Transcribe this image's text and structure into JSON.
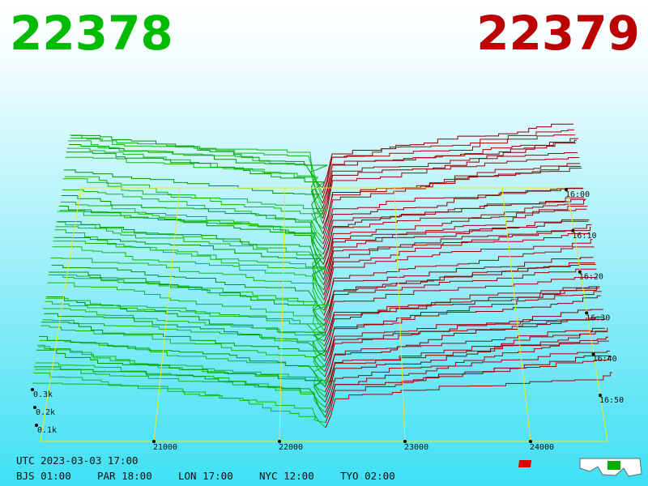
{
  "header": {
    "bid": "22378",
    "ask": "22379"
  },
  "price_axis": {
    "ticks": [
      "21000",
      "22000",
      "23000",
      "24000"
    ]
  },
  "depth_axis": {
    "ticks": [
      "0.1k",
      "0.2k",
      "0.3k"
    ]
  },
  "time_axis": {
    "ticks": [
      "16:00",
      "16:10",
      "16:20",
      "16:30",
      "16:40",
      "16:50"
    ]
  },
  "footer": {
    "utc": "UTC 2023-03-03 17:00",
    "zones": [
      "BJS 01:00",
      "PAR 18:00",
      "LON 17:00",
      "NYC 12:00",
      "TYO 02:00"
    ]
  }
}
